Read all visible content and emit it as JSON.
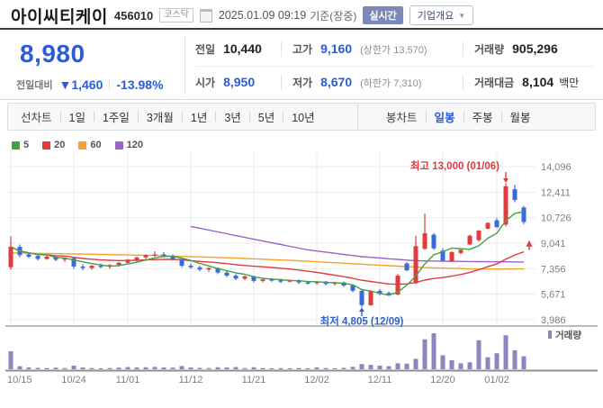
{
  "header": {
    "title": "아이씨티케이",
    "code": "456010",
    "market_badge": "코스닥",
    "datetime": "2025.01.09 09:19",
    "datetime_suffix": "기준(장중)",
    "realtime_badge": "실시간",
    "overview_button": "기업개요"
  },
  "quote": {
    "price": "8,980",
    "change_label": "전일대비",
    "change_arrow": "▼",
    "change_value": "1,460",
    "change_percent": "-13.98%",
    "fields": {
      "prev_label": "전일",
      "prev": "10,440",
      "high_label": "고가",
      "high": "9,160",
      "high_limit": "(상한가 13,570)",
      "volume_label": "거래량",
      "volume": "905,296",
      "open_label": "시가",
      "open": "8,950",
      "low_label": "저가",
      "low": "8,670",
      "low_limit": "(하한가 7,310)",
      "value_label": "거래대금",
      "value": "8,104",
      "value_unit": "백만"
    }
  },
  "toolbar": {
    "line_group_label": "선차트",
    "line_items": [
      "1일",
      "1주일",
      "3개월",
      "1년",
      "3년",
      "5년",
      "10년"
    ],
    "candle_group_label": "봉차트",
    "candle_items": [
      "일봉",
      "주봉",
      "월봉"
    ],
    "selected": "일봉"
  },
  "chart_data": {
    "type": "candlestick",
    "legend": [
      {
        "label": "5",
        "color": "#43a047"
      },
      {
        "label": "20",
        "color": "#e03b3f"
      },
      {
        "label": "60",
        "color": "#f2a32e"
      },
      {
        "label": "120",
        "color": "#9a63c9"
      }
    ],
    "volume_legend": "거래량",
    "y_ticks": [
      14096,
      12411,
      10726,
      9041,
      7356,
      5671,
      3986
    ],
    "y_tick_labels": [
      "14,096",
      "12,411",
      "10,726",
      "9,041",
      "7,356",
      "5,671",
      "3,986"
    ],
    "x_axis": [
      {
        "label": "10/15",
        "index": 0
      },
      {
        "label": "10/24",
        "index": 7
      },
      {
        "label": "11/01",
        "index": 13
      },
      {
        "label": "11/12",
        "index": 20
      },
      {
        "label": "11/21",
        "index": 27
      },
      {
        "label": "12/02",
        "index": 34
      },
      {
        "label": "12/11",
        "index": 41
      },
      {
        "label": "12/20",
        "index": 48
      },
      {
        "label": "01/02",
        "index": 54
      }
    ],
    "annotations": {
      "high": {
        "text": "최고 13,000 (01/06)",
        "index": 55,
        "value": 13000
      },
      "low": {
        "text": "최저 4,805 (12/09)",
        "index": 39,
        "value": 4805
      }
    },
    "candles": [
      [
        7450,
        9500,
        7300,
        8800
      ],
      [
        8800,
        8950,
        8100,
        8250
      ],
      [
        8300,
        8450,
        8050,
        8150
      ],
      [
        8200,
        8300,
        7900,
        8000
      ],
      [
        8000,
        8250,
        7950,
        8150
      ],
      [
        8150,
        8200,
        7850,
        7950
      ],
      [
        7950,
        8100,
        7800,
        8050
      ],
      [
        8050,
        8100,
        7350,
        7500
      ],
      [
        7500,
        7650,
        7250,
        7400
      ],
      [
        7400,
        7600,
        7300,
        7550
      ],
      [
        7550,
        7700,
        7400,
        7500
      ],
      [
        7500,
        7650,
        7350,
        7600
      ],
      [
        7600,
        7800,
        7500,
        7750
      ],
      [
        7750,
        8000,
        7650,
        7950
      ],
      [
        7950,
        8150,
        7800,
        8100
      ],
      [
        8100,
        8300,
        8000,
        8250
      ],
      [
        8250,
        8500,
        8150,
        8300
      ],
      [
        8300,
        8450,
        8100,
        8200
      ],
      [
        8200,
        8300,
        7900,
        8000
      ],
      [
        8000,
        8050,
        7450,
        7550
      ],
      [
        7550,
        7700,
        7350,
        7450
      ],
      [
        7450,
        7550,
        7200,
        7300
      ],
      [
        7300,
        7450,
        7150,
        7400
      ],
      [
        7400,
        7450,
        7000,
        7100
      ],
      [
        7100,
        7200,
        6800,
        6900
      ],
      [
        6900,
        7000,
        6600,
        6700
      ],
      [
        6700,
        6900,
        6600,
        6850
      ],
      [
        6850,
        6900,
        6450,
        6550
      ],
      [
        6550,
        6700,
        6450,
        6650
      ],
      [
        6650,
        6750,
        6500,
        6600
      ],
      [
        6600,
        6700,
        6400,
        6500
      ],
      [
        6500,
        6650,
        6450,
        6600
      ],
      [
        6600,
        6650,
        6350,
        6450
      ],
      [
        6450,
        6550,
        6300,
        6400
      ],
      [
        6400,
        6550,
        6300,
        6500
      ],
      [
        6500,
        6550,
        6250,
        6350
      ],
      [
        6350,
        6500,
        6250,
        6450
      ],
      [
        6450,
        6500,
        6150,
        6250
      ],
      [
        6250,
        6300,
        5800,
        5900
      ],
      [
        5900,
        5950,
        4805,
        4950
      ],
      [
        4950,
        5950,
        4900,
        5850
      ],
      [
        5900,
        6000,
        5600,
        5700
      ],
      [
        5750,
        5850,
        5550,
        5650
      ],
      [
        5650,
        7000,
        5600,
        6900
      ],
      [
        7700,
        7800,
        7200,
        7250
      ],
      [
        6400,
        9530,
        6350,
        8840
      ],
      [
        8670,
        11000,
        8600,
        9700
      ],
      [
        9600,
        9700,
        8600,
        8700
      ],
      [
        8550,
        8700,
        7850,
        7900
      ],
      [
        7830,
        8500,
        7800,
        8450
      ],
      [
        8400,
        8700,
        8300,
        8600
      ],
      [
        8960,
        9600,
        8900,
        9530
      ],
      [
        9240,
        9900,
        9150,
        9870
      ],
      [
        10000,
        10420,
        9950,
        10380
      ],
      [
        10550,
        10700,
        10050,
        10100
      ],
      [
        10270,
        13000,
        10150,
        12800
      ],
      [
        12600,
        12900,
        11750,
        11900
      ],
      [
        11400,
        11500,
        10300,
        10440
      ]
    ],
    "volumes": [
      900,
      150,
      90,
      70,
      60,
      80,
      60,
      180,
      90,
      60,
      50,
      60,
      80,
      110,
      90,
      100,
      120,
      90,
      80,
      160,
      90,
      70,
      60,
      100,
      90,
      110,
      60,
      100,
      60,
      50,
      60,
      50,
      60,
      50,
      90,
      60,
      50,
      70,
      120,
      260,
      220,
      180,
      150,
      300,
      280,
      520,
      1500,
      1800,
      700,
      450,
      300,
      350,
      1450,
      600,
      800,
      1700,
      950,
      650
    ],
    "ma_periods": {
      "short": 5,
      "mid": 20
    },
    "ma_controls": {
      "ma60": [
        [
          0,
          8400
        ],
        [
          8,
          8320
        ],
        [
          16,
          8230
        ],
        [
          24,
          8080
        ],
        [
          32,
          7880
        ],
        [
          40,
          7620
        ],
        [
          46,
          7430
        ],
        [
          52,
          7330
        ],
        [
          57,
          7340
        ]
      ],
      "ma120": [
        [
          20,
          10150
        ],
        [
          27,
          9300
        ],
        [
          33,
          8600
        ],
        [
          39,
          8150
        ],
        [
          45,
          7880
        ],
        [
          52,
          7820
        ],
        [
          57,
          7800
        ]
      ]
    },
    "price_marker": {
      "value": 9000
    },
    "colors": {
      "up": "#e03b3f",
      "down": "#3a6ad8",
      "ma5": "#43a047",
      "ma20": "#e03b3f",
      "ma60": "#f2a32e",
      "ma120": "#9a63c9",
      "volume": "#8f83c2",
      "grid": "#ebebeb",
      "axis_text": "#7a7f87",
      "high_note": "#e03b3f",
      "low_note": "#2f62c9"
    }
  }
}
